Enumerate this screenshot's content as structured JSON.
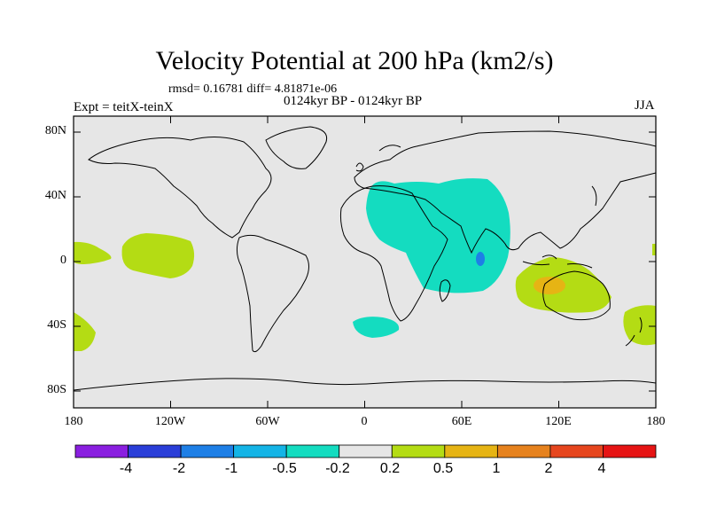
{
  "title": "Velocity Potential at 200 hPa (km2/s)",
  "stats": "rmsd= 0.16781 diff= 4.81871e-06",
  "experiment": "Expt = teitX-teinX",
  "period": "0124kyr BP - 0124kyr BP",
  "season": "JJA",
  "y_ticks": [
    "80N",
    "40N",
    "0",
    "40S",
    "80S"
  ],
  "x_ticks": [
    "180",
    "120W",
    "60W",
    "0",
    "60E",
    "120E",
    "180"
  ],
  "colorbar": {
    "labels": [
      "-4",
      "-2",
      "-1",
      "-0.5",
      "-0.2",
      "0.2",
      "0.5",
      "1",
      "2",
      "4"
    ],
    "colors": [
      "#8a1fe0",
      "#2a3ed8",
      "#1e7fe6",
      "#14b4e6",
      "#14dcc0",
      "#e6e6e6",
      "#b4dc14",
      "#e6b414",
      "#e6821e",
      "#e6461e",
      "#e61414"
    ]
  },
  "colors": {
    "background": "#e6e6e6",
    "negative_weak": "#14dcc0",
    "negative_mid": "#1e7fe6",
    "positive_weak": "#b4dc14",
    "positive_mid": "#e6b414"
  }
}
